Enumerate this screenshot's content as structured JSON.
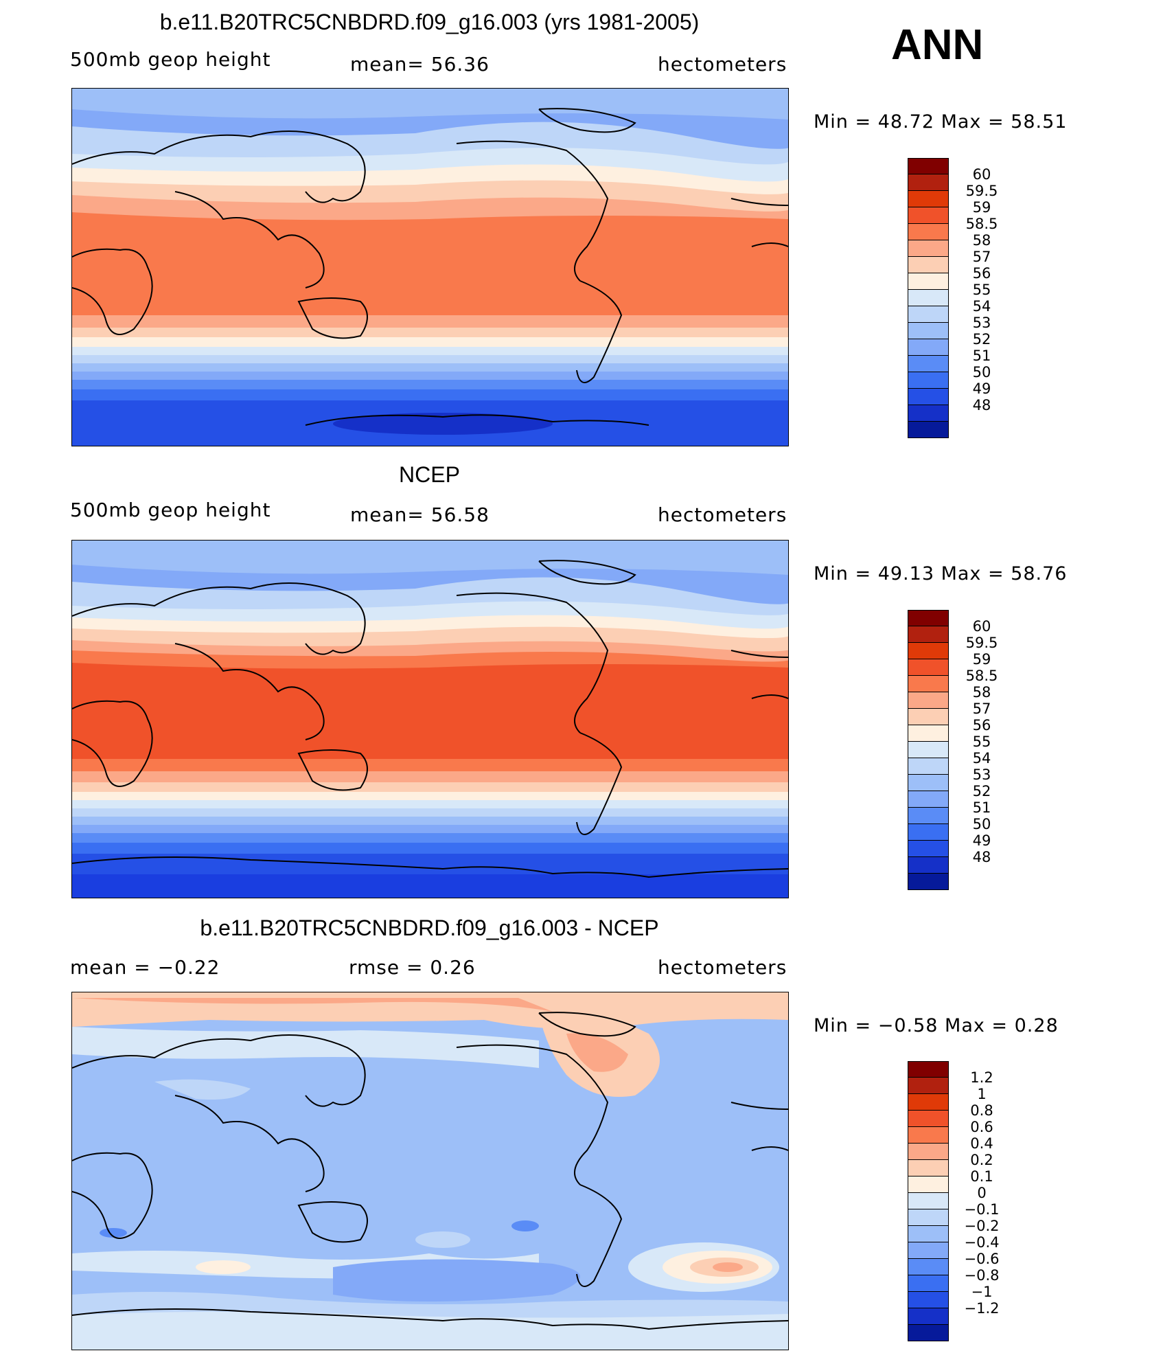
{
  "season": "ANN",
  "panels": [
    {
      "title": "b.e11.B20TRC5CNBDRD.f09_g16.003 (yrs 1981-2005)",
      "left_label": "500mb  geop  height",
      "center_label": "mean=   56.36",
      "right_label": "hectometers",
      "stats": "Min =    48.72  Max =    58.51",
      "colorbar_colors": [
        "#800000",
        "#b1210f",
        "#e03a08",
        "#f0522a",
        "#f9794c",
        "#fba888",
        "#fccfb4",
        "#fef0e0",
        "#d8e8f8",
        "#bed6f8",
        "#9dbff8",
        "#83a9f8",
        "#5a8cf6",
        "#3a6ff2",
        "#2550e6",
        "#1530c8",
        "#061a9a"
      ],
      "colorbar_labels": [
        "60",
        "59.5",
        "59",
        "58.5",
        "58",
        "57",
        "56",
        "55",
        "54",
        "53",
        "52",
        "51",
        "50",
        "49",
        "48"
      ]
    },
    {
      "title": "NCEP",
      "left_label": "500mb  geop  height",
      "center_label": "mean=   56.58",
      "right_label": "hectometers",
      "stats": "Min =    49.13  Max =    58.76",
      "colorbar_colors": [
        "#800000",
        "#b1210f",
        "#e03a08",
        "#f0522a",
        "#f9794c",
        "#fba888",
        "#fccfb4",
        "#fef0e0",
        "#d8e8f8",
        "#bed6f8",
        "#9dbff8",
        "#83a9f8",
        "#5a8cf6",
        "#3a6ff2",
        "#2550e6",
        "#1530c8",
        "#061a9a"
      ],
      "colorbar_labels": [
        "60",
        "59.5",
        "59",
        "58.5",
        "58",
        "57",
        "56",
        "55",
        "54",
        "53",
        "52",
        "51",
        "50",
        "49",
        "48"
      ]
    },
    {
      "title": "b.e11.B20TRC5CNBDRD.f09_g16.003 - NCEP",
      "left_label": "mean =   −0.22",
      "center_label": "rmse =    0.26",
      "right_label": "hectometers",
      "stats": "Min =   −0.58  Max =     0.28",
      "colorbar_colors": [
        "#800000",
        "#b1210f",
        "#e03a08",
        "#f0522a",
        "#f9794c",
        "#fba888",
        "#fccfb4",
        "#fef0e0",
        "#d8e8f8",
        "#bed6f8",
        "#9dbff8",
        "#83a9f8",
        "#5a8cf6",
        "#3a6ff2",
        "#2550e6",
        "#1530c8",
        "#061a9a"
      ],
      "colorbar_labels": [
        "1.2",
        "1",
        "0.8",
        "0.6",
        "0.4",
        "0.2",
        "0.1",
        "0",
        "−0.1",
        "−0.2",
        "−0.4",
        "−0.6",
        "−0.8",
        "−1",
        "−1.2"
      ]
    }
  ]
}
